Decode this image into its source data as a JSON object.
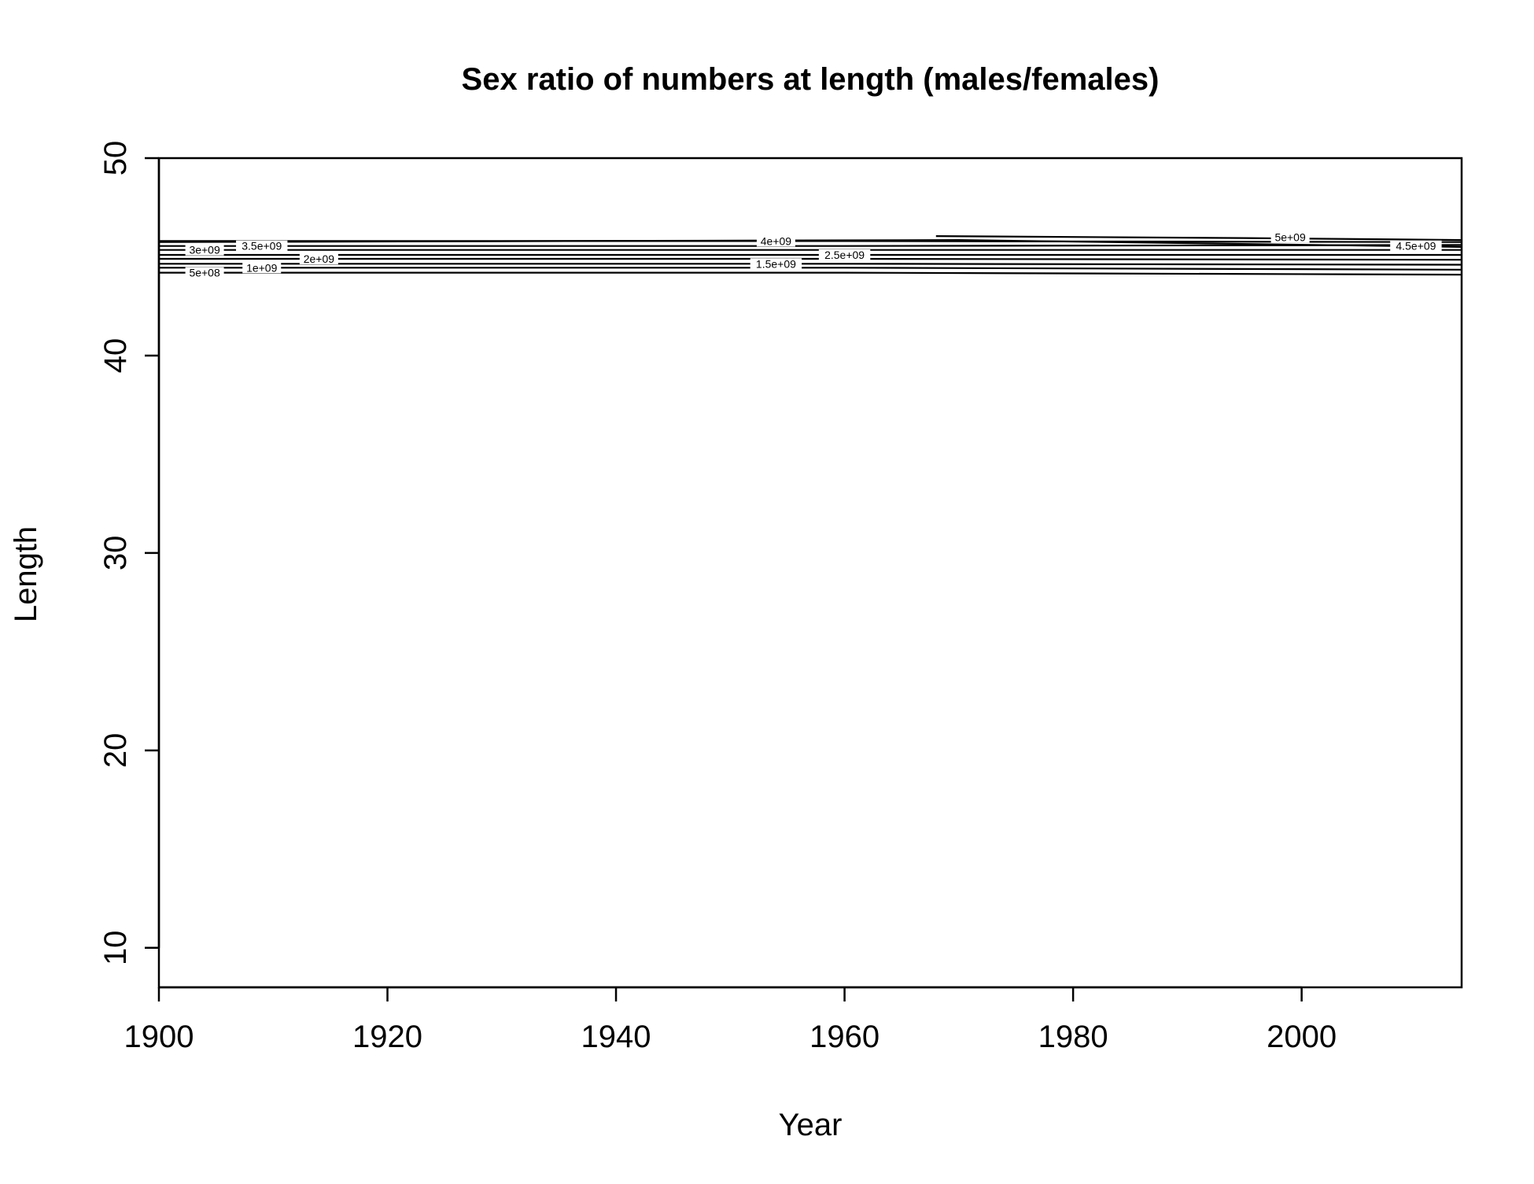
{
  "chart_data": {
    "type": "contour",
    "title": "Sex ratio of numbers at length (males/females)",
    "xlabel": "Year",
    "ylabel": "Length",
    "xlim": [
      1900,
      2014
    ],
    "ylim": [
      8,
      50
    ],
    "x_ticks": [
      1900,
      1920,
      1940,
      1960,
      1980,
      2000
    ],
    "y_ticks": [
      10,
      20,
      30,
      40,
      50
    ],
    "grid": false,
    "legend": "none",
    "line_color": "#000000",
    "contours": [
      {
        "level_label": "5e+08",
        "length": [
          [
            1900,
            44.2
          ],
          [
            1960,
            44.2
          ],
          [
            2014,
            44.1
          ]
        ],
        "label_at": [
          1904,
          44.2
        ]
      },
      {
        "level_label": "1e+09",
        "length": [
          [
            1900,
            44.45
          ],
          [
            1960,
            44.45
          ],
          [
            2014,
            44.35
          ]
        ],
        "label_at": [
          1909,
          44.45
        ]
      },
      {
        "level_label": "1.5e+09",
        "length": [
          [
            1900,
            44.65
          ],
          [
            1960,
            44.65
          ],
          [
            2014,
            44.6
          ]
        ],
        "label_at": [
          1954,
          44.65
        ]
      },
      {
        "level_label": "2e+09",
        "length": [
          [
            1900,
            44.9
          ],
          [
            1960,
            44.9
          ],
          [
            2014,
            44.85
          ]
        ],
        "label_at": [
          1914,
          44.9
        ]
      },
      {
        "level_label": "2.5e+09",
        "length": [
          [
            1900,
            45.1
          ],
          [
            1960,
            45.1
          ],
          [
            2014,
            45.1
          ]
        ],
        "label_at": [
          1960,
          45.1
        ]
      },
      {
        "level_label": "3e+09",
        "length": [
          [
            1900,
            45.35
          ],
          [
            1960,
            45.35
          ],
          [
            2014,
            45.35
          ]
        ],
        "label_at": [
          1904,
          45.35
        ]
      },
      {
        "level_label": "3.5e+09",
        "length": [
          [
            1900,
            45.55
          ],
          [
            1960,
            45.55
          ],
          [
            2014,
            45.6
          ]
        ],
        "label_at": [
          1909,
          45.55
        ]
      },
      {
        "level_label": "4e+09",
        "length": [
          [
            1900,
            45.8
          ],
          [
            1960,
            45.8
          ],
          [
            2014,
            45.75
          ]
        ],
        "label_at": [
          1954,
          45.8
        ]
      },
      {
        "level_label": "4.5e+09",
        "length": [
          [
            1900,
            45.75
          ],
          [
            1970,
            45.85
          ],
          [
            2014,
            45.5
          ]
        ],
        "label_at": [
          2010,
          45.55
        ]
      },
      {
        "level_label": "5e+09",
        "length": [
          [
            1968,
            46.05
          ],
          [
            1995,
            45.95
          ],
          [
            2014,
            45.85
          ]
        ],
        "label_at": [
          1999,
          46.0
        ]
      }
    ]
  }
}
